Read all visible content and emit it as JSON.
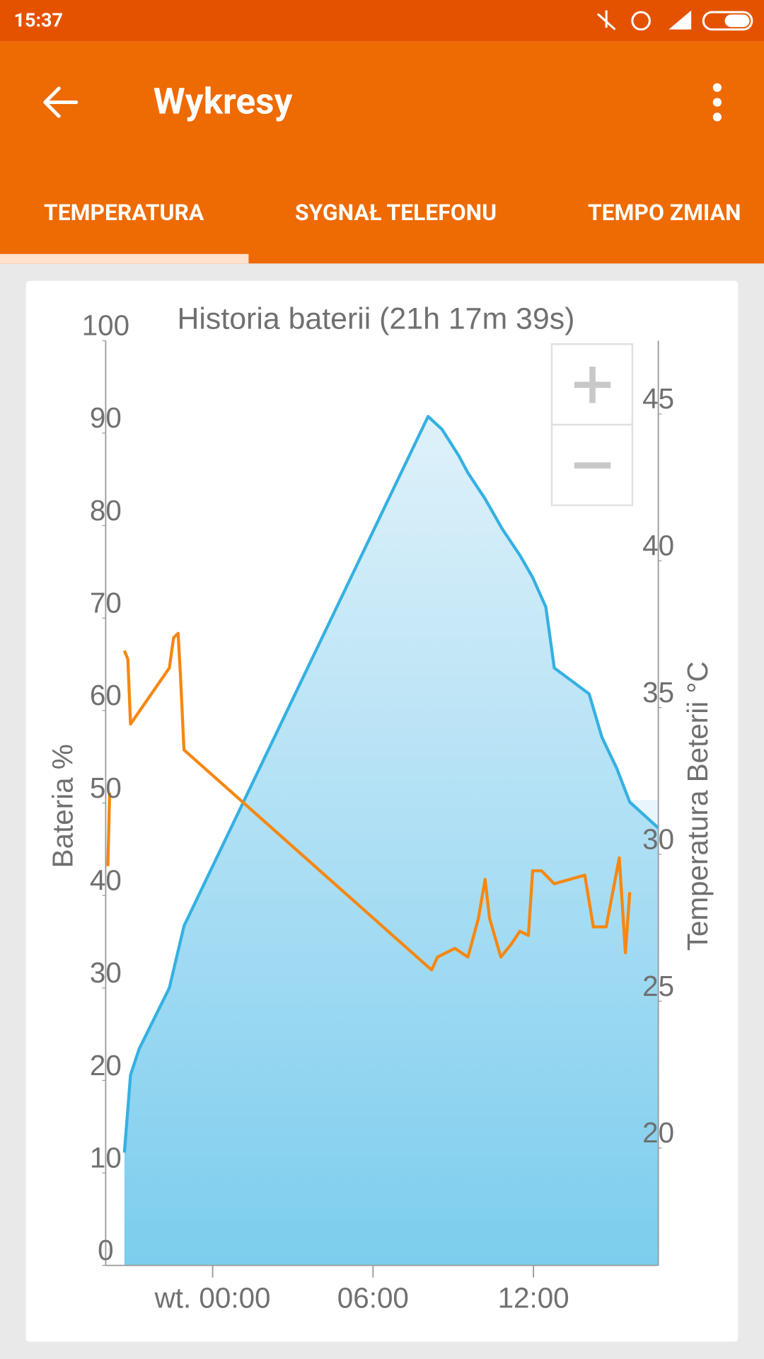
{
  "status_bar": {
    "time": "15:37"
  },
  "app_bar": {
    "title": "Wykresy"
  },
  "tabs": [
    "TEMPERATURA",
    "SYGNAŁ TELEFONU",
    "TEMPO ZMIAN"
  ],
  "chart_data": {
    "type": "line",
    "title": "Historia baterii (21h 17m 39s)",
    "ylabel": "Bateria %",
    "y2label": "Temperatura Beterii °C",
    "xlim": [
      -4,
      16.67
    ],
    "xticks": [
      {
        "value": 0,
        "label": "wt. 00:00"
      },
      {
        "value": 6,
        "label": "06:00"
      },
      {
        "value": 12,
        "label": "12:00"
      }
    ],
    "ylim": [
      0,
      100
    ],
    "yticks": [
      0,
      10,
      20,
      30,
      40,
      50,
      60,
      70,
      80,
      90,
      100
    ],
    "y2lim": [
      16,
      47.5
    ],
    "y2ticks": [
      20,
      25,
      30,
      35,
      40,
      45
    ],
    "series": [
      {
        "color": "#35b0e2",
        "area": true,
        "x": [
          -3.3,
          -3.07,
          -2.75,
          -1.62,
          -1.07,
          8.06,
          8.58,
          9.22,
          9.55,
          10.19,
          10.84,
          11.49,
          11.97,
          12.46,
          12.78,
          14.08,
          14.56,
          15.11,
          15.6,
          16.67
        ],
        "values": [
          12.2,
          20.6,
          23.4,
          30,
          36.7,
          91.8,
          90.4,
          87.5,
          85.7,
          82.9,
          79.6,
          76.8,
          74.4,
          71.2,
          64.6,
          61.8,
          57.1,
          53.8,
          50.1,
          47.3
        ]
      },
      {
        "color": "#f7870f",
        "axis": "y2",
        "x": [
          -3.92,
          -3.85,
          null,
          -3.3,
          -3.17,
          -3.07,
          -1.62,
          -1.46,
          -1.29,
          -1.2,
          -1.07,
          8.19,
          8.41,
          9.06,
          9.55,
          9.94,
          10.19,
          10.36,
          10.78,
          11.17,
          11.49,
          11.81,
          11.97,
          12.3,
          12.78,
          13.92,
          14.24,
          14.72,
          15.21,
          15.44,
          15.6
        ],
        "values": [
          29.6,
          32.1,
          null,
          36.94,
          36.65,
          34.44,
          36.35,
          37.38,
          37.53,
          36.06,
          33.56,
          26.06,
          26.5,
          26.8,
          26.5,
          27.82,
          29.15,
          27.82,
          26.5,
          26.94,
          27.38,
          27.24,
          29.44,
          29.44,
          29,
          29.29,
          27.53,
          27.53,
          29.88,
          26.65,
          28.71
        ]
      }
    ]
  }
}
